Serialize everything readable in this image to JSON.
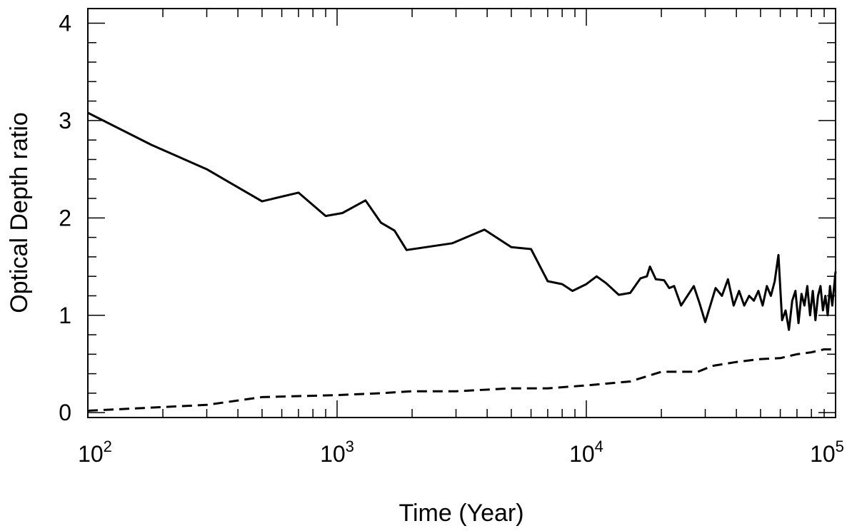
{
  "chart_data": {
    "type": "line",
    "xlabel": "Time (Year)",
    "ylabel": "Optical Depth ratio",
    "xscale": "log",
    "xlim": [
      100,
      100000
    ],
    "ylim": [
      -0.05,
      4.15
    ],
    "x_ticks": [
      {
        "value": 100,
        "base": "10",
        "exp": "2"
      },
      {
        "value": 1000,
        "base": "10",
        "exp": "3"
      },
      {
        "value": 10000,
        "base": "10",
        "exp": "4"
      },
      {
        "value": 100000,
        "base": "10",
        "exp": "5"
      }
    ],
    "y_ticks": [
      0,
      1,
      2,
      3,
      4
    ],
    "grid": false,
    "series": [
      {
        "style": "solid",
        "color": "#000000",
        "x": [
          100,
          180,
          300,
          500,
          700,
          900,
          1050,
          1300,
          1500,
          1700,
          1900,
          2900,
          3900,
          5000,
          6000,
          7000,
          8000,
          8800,
          10000,
          11000,
          12000,
          13500,
          15000,
          16500,
          17500,
          18000,
          19000,
          20500,
          21500,
          22500,
          24000,
          27000,
          28500,
          30000,
          33000,
          35000,
          37000,
          39000,
          41000,
          43000,
          45000,
          47000,
          49000,
          51000,
          53000,
          55000,
          57000,
          59000,
          61000,
          63000,
          65000,
          67000,
          69000,
          71000,
          73000,
          75000,
          77000,
          79000,
          81000,
          83000,
          85000,
          87000,
          89000,
          91000,
          93000,
          95000,
          97000,
          100000
        ],
        "y": [
          3.08,
          2.75,
          2.5,
          2.17,
          2.26,
          2.02,
          2.05,
          2.18,
          1.95,
          1.87,
          1.67,
          1.74,
          1.88,
          1.7,
          1.68,
          1.35,
          1.32,
          1.25,
          1.32,
          1.4,
          1.33,
          1.21,
          1.23,
          1.38,
          1.4,
          1.5,
          1.37,
          1.36,
          1.28,
          1.3,
          1.1,
          1.3,
          1.12,
          0.93,
          1.28,
          1.2,
          1.37,
          1.1,
          1.25,
          1.1,
          1.2,
          1.15,
          1.25,
          1.1,
          1.3,
          1.2,
          1.35,
          1.62,
          0.95,
          1.05,
          0.85,
          1.15,
          1.25,
          0.92,
          1.22,
          1.1,
          1.3,
          1.0,
          1.25,
          0.95,
          1.2,
          1.3,
          1.05,
          1.2,
          1.0,
          1.3,
          1.1,
          1.45
        ]
      },
      {
        "style": "dashed",
        "color": "#000000",
        "x": [
          100,
          300,
          500,
          1000,
          1500,
          2000,
          3000,
          5000,
          7000,
          10000,
          15000,
          20000,
          28000,
          32000,
          40000,
          50000,
          60000,
          70000,
          80000,
          90000,
          100000
        ],
        "y": [
          0.02,
          0.08,
          0.16,
          0.18,
          0.2,
          0.22,
          0.22,
          0.25,
          0.25,
          0.28,
          0.32,
          0.42,
          0.42,
          0.48,
          0.52,
          0.55,
          0.56,
          0.6,
          0.62,
          0.65,
          0.65
        ]
      }
    ]
  }
}
